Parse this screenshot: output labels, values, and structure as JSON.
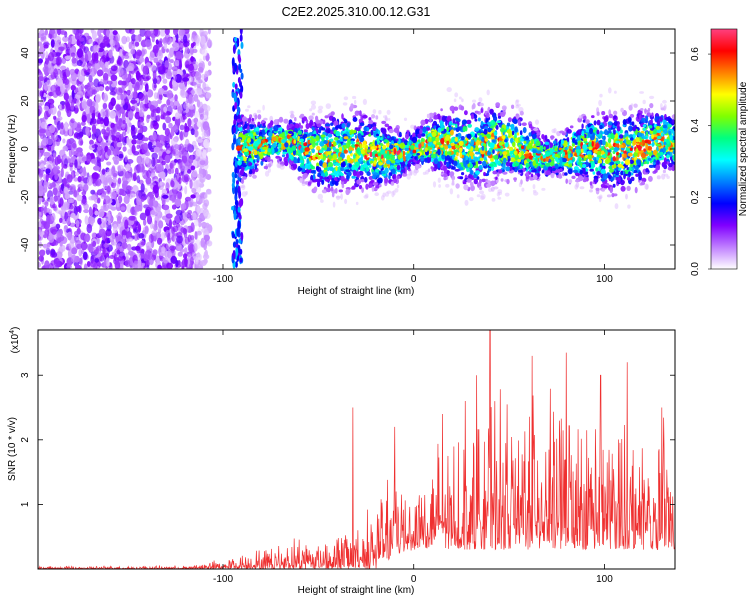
{
  "title": "C2E2.2025.310.00.12.G31",
  "chart_data": [
    {
      "type": "heatmap",
      "xlabel": "Height of straight line (km)",
      "ylabel": "Frequency (Hz)",
      "xlim": [
        -197,
        137
      ],
      "ylim": [
        -50,
        50
      ],
      "x_ticks": [
        -100,
        0,
        100
      ],
      "y_ticks": [
        -40,
        -20,
        0,
        20,
        40
      ],
      "colorbar": {
        "label": "Normalized spectral amplitude",
        "range": [
          0.0,
          0.67
        ],
        "ticks": [
          0.0,
          0.2,
          0.4,
          0.6
        ],
        "colors": [
          "#ffffff",
          "#c080ff",
          "#8000ff",
          "#0000ff",
          "#0080ff",
          "#00ffff",
          "#00ff80",
          "#80ff00",
          "#ffff00",
          "#ff8000",
          "#ff0000",
          "#ff4080"
        ]
      },
      "regions": [
        {
          "x_range": [
            -197,
            -115
          ],
          "description": "broadband noise",
          "level": 0.1
        },
        {
          "x_range": [
            -95,
            -90
          ],
          "description": "vertical streak",
          "level": 0.2
        },
        {
          "x_range": [
            -92,
            137
          ],
          "description": "signal band near 0 Hz",
          "center_freq": 0,
          "width": 14,
          "peak_level": 0.6
        }
      ]
    },
    {
      "type": "line",
      "xlabel": "Height of straight line (km)",
      "ylabel": "SNR (10 * v/v)",
      "y_multiplier": "(x10^4)",
      "xlim": [
        -197,
        137
      ],
      "ylim": [
        0,
        3.7
      ],
      "x_ticks": [
        -100,
        0,
        100
      ],
      "y_ticks": [
        1,
        2,
        3
      ],
      "color": "#ef3030",
      "envelope": {
        "x": [
          -197,
          -120,
          -100,
          -80,
          -60,
          -40,
          -25,
          -20,
          -10,
          0,
          10,
          20,
          30,
          40,
          50,
          60,
          70,
          80,
          90,
          100,
          110,
          120,
          130,
          137
        ],
        "max": [
          0.04,
          0.05,
          0.15,
          0.3,
          0.5,
          0.55,
          0.9,
          1.1,
          1.4,
          1.5,
          1.8,
          2.0,
          2.2,
          2.5,
          2.6,
          2.7,
          2.7,
          2.6,
          2.4,
          2.4,
          2.2,
          2.3,
          2.2,
          2.0
        ],
        "min": [
          0.0,
          0.0,
          0.0,
          0.0,
          0.0,
          0.0,
          0.0,
          0.0,
          0.2,
          0.3,
          0.3,
          0.3,
          0.3,
          0.3,
          0.3,
          0.3,
          0.3,
          0.3,
          0.3,
          0.3,
          0.3,
          0.3,
          0.3,
          0.3
        ]
      },
      "spikes": [
        {
          "x": -32,
          "y": 2.5
        },
        {
          "x": -10,
          "y": 2.2
        },
        {
          "x": 15,
          "y": 2.4
        },
        {
          "x": 27,
          "y": 2.6
        },
        {
          "x": 33,
          "y": 3.0
        },
        {
          "x": 40,
          "y": 3.7
        },
        {
          "x": 62,
          "y": 3.3
        },
        {
          "x": 80,
          "y": 3.35
        },
        {
          "x": 98,
          "y": 3.0
        },
        {
          "x": 112,
          "y": 3.2
        },
        {
          "x": 130,
          "y": 2.5
        }
      ]
    }
  ]
}
